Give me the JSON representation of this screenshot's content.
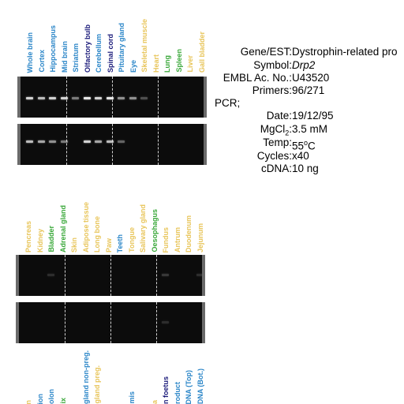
{
  "panel1": {
    "tissues": [
      {
        "label": "Whole brain",
        "color": "#2b86c8"
      },
      {
        "label": "Cortex",
        "color": "#2b86c8"
      },
      {
        "label": "Hippocampus",
        "color": "#2b86c8"
      },
      {
        "label": "Mid brain",
        "color": "#2b86c8"
      },
      {
        "label": "Striatum",
        "color": "#2b86c8"
      },
      {
        "label": "Olfactory bulb",
        "color": "#1a1a7a"
      },
      {
        "label": "Cerebellum",
        "color": "#2b86c8"
      },
      {
        "label": "Spinal cord",
        "color": "#1a1a7a"
      },
      {
        "label": "Pituitary gland",
        "color": "#2b86c8"
      },
      {
        "label": "Eye",
        "color": "#2b86c8"
      },
      {
        "label": "Skeletal muscle",
        "color": "#e8c55a"
      },
      {
        "label": "Heart",
        "color": "#e8c55a"
      },
      {
        "label": "Lung",
        "color": "#3aa83a"
      },
      {
        "label": "Spleen",
        "color": "#3aa83a"
      },
      {
        "label": "Liver",
        "color": "#e8c55a"
      },
      {
        "label": "Gall bladder",
        "color": "#e8c55a"
      }
    ]
  },
  "panel2": {
    "tissues": [
      {
        "label": "Pencreas",
        "color": "#e8c55a"
      },
      {
        "label": "Kidney",
        "color": "#e8c55a"
      },
      {
        "label": "Bladder",
        "color": "#3aa83a"
      },
      {
        "label": "Adrenal gland",
        "color": "#3aa83a"
      },
      {
        "label": "Skin",
        "color": "#e8c55a"
      },
      {
        "label": "Adipose tissue",
        "color": "#e8c55a"
      },
      {
        "label": "Long bone",
        "color": "#e8c55a"
      },
      {
        "label": "Paw",
        "color": "#e8c55a"
      },
      {
        "label": "Teeth",
        "color": "#2b86c8"
      },
      {
        "label": "Tongue",
        "color": "#e8c55a"
      },
      {
        "label": "Salivary gland",
        "color": "#e8c55a"
      },
      {
        "label": "Oesophagus",
        "color": "#3aa83a"
      },
      {
        "label": "Fundus",
        "color": "#e8c55a"
      },
      {
        "label": "Antrum",
        "color": "#e8c55a"
      },
      {
        "label": "Duodenum",
        "color": "#e8c55a"
      },
      {
        "label": "Jejunum",
        "color": "#e8c55a"
      }
    ]
  },
  "panel3": {
    "tissues": [
      {
        "label": "n",
        "color": "#e8c55a"
      },
      {
        "label": "ion",
        "color": "#2b86c8"
      },
      {
        "label": "olon",
        "color": "#2b86c8"
      },
      {
        "label": "ix",
        "color": "#3aa83a"
      },
      {
        "label": "",
        "color": "#2b86c8"
      },
      {
        "label": "gland non-preg.",
        "color": "#2b86c8"
      },
      {
        "label": "gland preg.",
        "color": "#e8c55a"
      },
      {
        "label": "",
        "color": "#2b86c8"
      },
      {
        "label": "",
        "color": "#2b86c8"
      },
      {
        "label": "mis",
        "color": "#2b86c8"
      },
      {
        "label": "",
        "color": "#2b86c8"
      },
      {
        "label": "a",
        "color": "#e8c55a"
      },
      {
        "label": "n foetus",
        "color": "#1a1a7a"
      },
      {
        "label": "roduct",
        "color": "#2b86c8"
      },
      {
        "label": "DNA (Top)",
        "color": "#2b86c8"
      },
      {
        "label": "DNA (Bot.)",
        "color": "#2b86c8"
      }
    ]
  },
  "info": {
    "gene_key": "Gene/EST:",
    "gene_val": "Dystrophin-related pro",
    "symbol_key": "Symbol:",
    "symbol_val": "Drp2",
    "embl_key": "EMBL Ac. No.:",
    "embl_val": "U43520",
    "primers_key": "Primers:",
    "primers_val": "96/271",
    "pcr": "PCR;",
    "date_key": "Date:",
    "date_val": "19/12/95",
    "mgcl_key_a": "MgCl",
    "mgcl_key_sub": "2",
    "mgcl_key_b": ":",
    "mgcl_val": "3.5 mM",
    "temp_key": "Temp:",
    "temp_val_a": "55",
    "temp_val_sup": "o",
    "temp_val_b": "C",
    "cycles_key": "Cycles:",
    "cycles_val": "x40",
    "cdna_key": "cDNA:",
    "cdna_val": "10 ng"
  }
}
